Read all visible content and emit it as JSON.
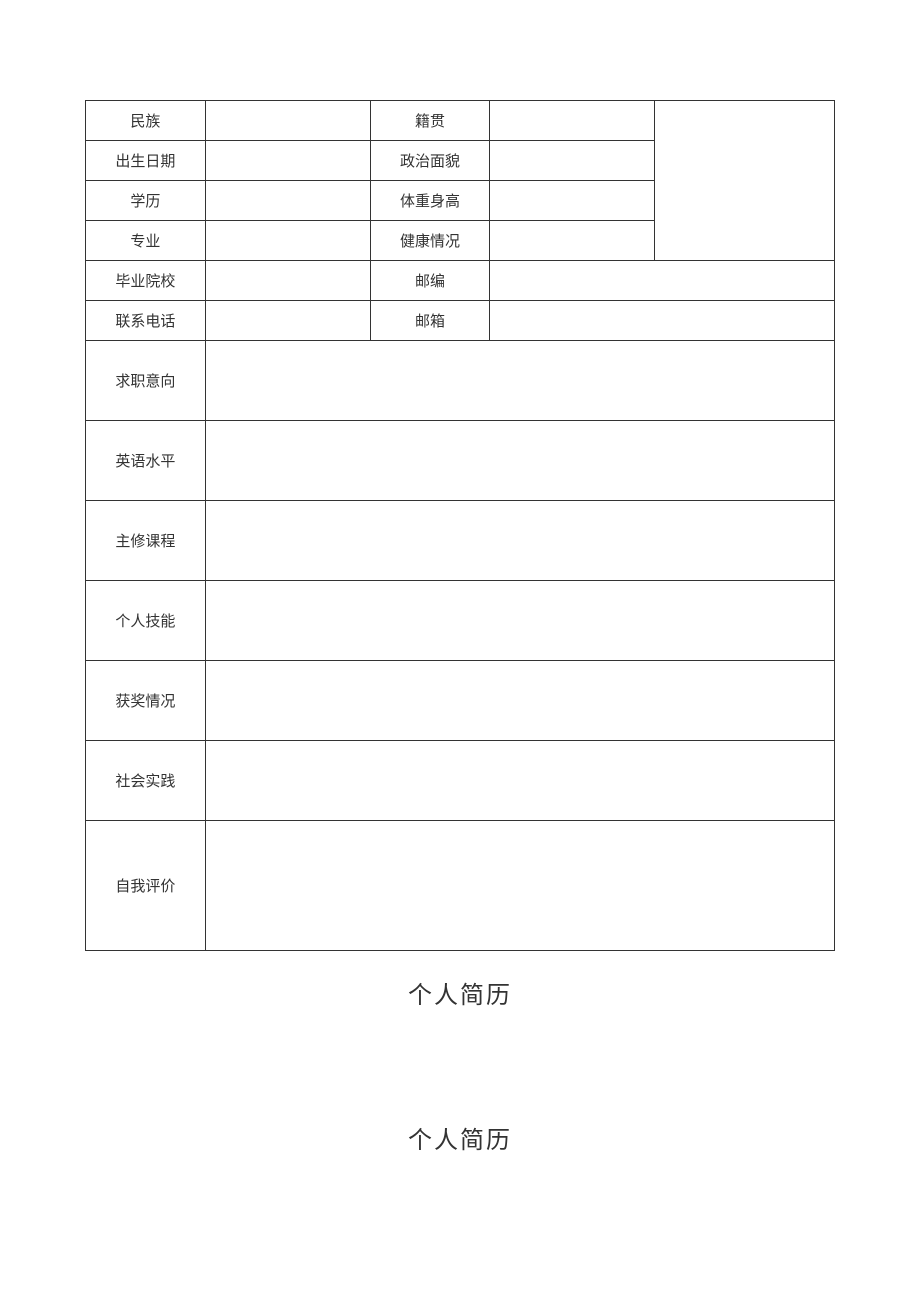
{
  "table": {
    "border_color": "#333333",
    "text_color": "#333333",
    "background_color": "#ffffff",
    "font_size": 15,
    "rows_info": [
      {
        "label1": "民族",
        "label2": "籍贯",
        "height": "row-small",
        "has_photo": true
      },
      {
        "label1": "出生日期",
        "label2": "政治面貌",
        "height": "row-small",
        "has_photo": true
      },
      {
        "label1": "学历",
        "label2": "体重身高",
        "height": "row-small",
        "has_photo": true
      },
      {
        "label1": "专业",
        "label2": "健康情况",
        "height": "row-small",
        "has_photo": true
      },
      {
        "label1": "毕业院校",
        "label2": "邮编",
        "height": "row-small",
        "has_photo": false
      },
      {
        "label1": "联系电话",
        "label2": "邮箱",
        "height": "row-small",
        "has_photo": false
      }
    ],
    "rows_section": [
      {
        "label": "求职意向",
        "height": "row-medium"
      },
      {
        "label": "英语水平",
        "height": "row-medium"
      },
      {
        "label": "主修课程",
        "height": "row-medium"
      },
      {
        "label": "个人技能",
        "height": "row-medium"
      },
      {
        "label": "获奖情况",
        "height": "row-medium"
      },
      {
        "label": "社会实践",
        "height": "row-medium"
      },
      {
        "label": "自我评价",
        "height": "row-large"
      }
    ]
  },
  "titles": {
    "title1": "个人简历",
    "title2": "个人简历",
    "font_size": 24
  }
}
